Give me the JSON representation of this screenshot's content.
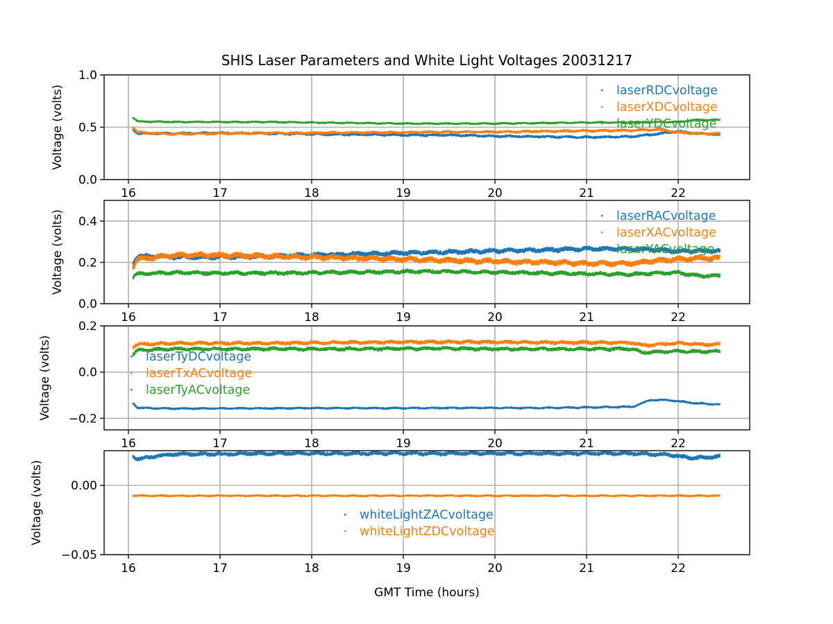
{
  "chart_data": {
    "title": "SHIS Laser Parameters and White Light Voltages 20031217",
    "xlabel": "GMT Time (hours)",
    "xlim": [
      15.735,
      22.78
    ],
    "xticks": [
      16,
      17,
      18,
      19,
      20,
      21,
      22
    ],
    "xtick_labels": [
      "16",
      "17",
      "18",
      "19",
      "20",
      "21",
      "22"
    ],
    "grid": true,
    "colors": {
      "blue": "#1f77b4",
      "orange": "#ff7f0e",
      "green": "#2ca02c"
    },
    "panels": [
      {
        "type": "scatter",
        "ylabel": "Voltage (volts)",
        "ylim": [
          0.0,
          1.0
        ],
        "yticks": [
          0.0,
          0.5,
          1.0
        ],
        "ytick_labels": [
          "0.0",
          "0.5",
          "1.0"
        ],
        "legend": "upper-right",
        "series": [
          {
            "name": "laserRDCvoltage",
            "color": "#1f77b4",
            "spread": 0.012,
            "x": [
              16.05,
              16.1,
              16.5,
              17,
              17.5,
              18,
              18.5,
              19,
              19.5,
              20,
              20.5,
              21,
              21.5,
              21.8,
              22.0,
              22.2,
              22.45
            ],
            "y": [
              0.48,
              0.44,
              0.44,
              0.445,
              0.44,
              0.435,
              0.43,
              0.425,
              0.425,
              0.415,
              0.41,
              0.405,
              0.41,
              0.44,
              0.46,
              0.44,
              0.43
            ]
          },
          {
            "name": "laserXDCvoltage",
            "color": "#ff7f0e",
            "spread": 0.012,
            "x": [
              16.05,
              16.1,
              16.5,
              17,
              17.5,
              18,
              18.5,
              19,
              19.5,
              20,
              20.5,
              21,
              21.5,
              21.8,
              22.0,
              22.2,
              22.45
            ],
            "y": [
              0.5,
              0.45,
              0.435,
              0.44,
              0.445,
              0.445,
              0.45,
              0.45,
              0.455,
              0.455,
              0.46,
              0.465,
              0.47,
              0.48,
              0.45,
              0.44,
              0.44
            ]
          },
          {
            "name": "laserYDCvoltage",
            "color": "#2ca02c",
            "spread": 0.008,
            "x": [
              16.05,
              16.1,
              16.5,
              17,
              17.5,
              18,
              18.5,
              19,
              19.5,
              20,
              20.5,
              21,
              21.5,
              21.8,
              22.0,
              22.2,
              22.45
            ],
            "y": [
              0.59,
              0.555,
              0.55,
              0.55,
              0.55,
              0.545,
              0.54,
              0.535,
              0.535,
              0.535,
              0.54,
              0.545,
              0.545,
              0.55,
              0.55,
              0.57,
              0.57
            ]
          }
        ]
      },
      {
        "type": "scatter",
        "ylabel": "Voltage (volts)",
        "ylim": [
          0.0,
          0.5
        ],
        "yticks": [
          0.0,
          0.2,
          0.4
        ],
        "ytick_labels": [
          "0.0",
          "0.2",
          "0.4"
        ],
        "legend": "upper-right",
        "series": [
          {
            "name": "laserRACvoltage",
            "color": "#1f77b4",
            "spread": 0.012,
            "x": [
              16.05,
              16.1,
              16.5,
              17,
              17.5,
              18,
              18.5,
              19,
              19.5,
              20,
              20.5,
              21,
              21.5,
              21.8,
              22.0,
              22.2,
              22.45
            ],
            "y": [
              0.2,
              0.23,
              0.225,
              0.225,
              0.23,
              0.235,
              0.24,
              0.245,
              0.25,
              0.255,
              0.26,
              0.265,
              0.265,
              0.26,
              0.255,
              0.255,
              0.255
            ]
          },
          {
            "name": "laserXACvoltage",
            "color": "#ff7f0e",
            "spread": 0.014,
            "x": [
              16.05,
              16.1,
              16.5,
              17,
              17.5,
              18,
              18.5,
              19,
              19.5,
              20,
              20.5,
              21,
              21.5,
              21.8,
              22.0,
              22.2,
              22.45
            ],
            "y": [
              0.18,
              0.215,
              0.235,
              0.235,
              0.23,
              0.225,
              0.22,
              0.215,
              0.21,
              0.205,
              0.2,
              0.195,
              0.195,
              0.21,
              0.215,
              0.22,
              0.22
            ]
          },
          {
            "name": "laserYACvoltage",
            "color": "#2ca02c",
            "spread": 0.01,
            "x": [
              16.05,
              16.1,
              16.5,
              17,
              17.5,
              18,
              18.5,
              19,
              19.5,
              20,
              20.5,
              21,
              21.5,
              21.8,
              22.0,
              22.2,
              22.45
            ],
            "y": [
              0.13,
              0.145,
              0.15,
              0.148,
              0.148,
              0.15,
              0.152,
              0.155,
              0.155,
              0.152,
              0.148,
              0.145,
              0.142,
              0.148,
              0.15,
              0.135,
              0.135
            ]
          }
        ]
      },
      {
        "type": "scatter",
        "ylabel": "Voltage (volts)",
        "ylim": [
          -0.25,
          0.2
        ],
        "yticks": [
          -0.2,
          0.0,
          0.2
        ],
        "ytick_labels": [
          "−0.2",
          "0.0",
          "0.2"
        ],
        "legend": "center-left",
        "series": [
          {
            "name": "laserTyDCvoltage",
            "color": "#1f77b4",
            "spread": 0.004,
            "x": [
              16.05,
              16.1,
              16.5,
              17,
              17.5,
              18,
              18.5,
              19,
              19.5,
              20,
              20.5,
              21,
              21.5,
              21.6,
              21.7,
              21.9,
              22.2,
              22.45
            ],
            "y": [
              -0.135,
              -0.155,
              -0.158,
              -0.157,
              -0.157,
              -0.156,
              -0.156,
              -0.156,
              -0.155,
              -0.155,
              -0.155,
              -0.153,
              -0.15,
              -0.135,
              -0.12,
              -0.122,
              -0.135,
              -0.14
            ]
          },
          {
            "name": "laserTxACvoltage",
            "color": "#ff7f0e",
            "spread": 0.008,
            "x": [
              16.05,
              16.1,
              16.5,
              17,
              17.5,
              18,
              18.5,
              19,
              19.5,
              20,
              20.5,
              21,
              21.5,
              21.6,
              21.8,
              22.0,
              22.2,
              22.45
            ],
            "y": [
              0.11,
              0.12,
              0.125,
              0.125,
              0.125,
              0.127,
              0.128,
              0.13,
              0.13,
              0.13,
              0.128,
              0.128,
              0.127,
              0.115,
              0.12,
              0.125,
              0.12,
              0.12
            ]
          },
          {
            "name": "laserTyACvoltage",
            "color": "#2ca02c",
            "spread": 0.008,
            "x": [
              16.05,
              16.1,
              16.5,
              17,
              17.5,
              18,
              18.5,
              19,
              19.5,
              20,
              20.5,
              21,
              21.5,
              21.6,
              21.8,
              22.0,
              22.2,
              22.45
            ],
            "y": [
              0.075,
              0.095,
              0.1,
              0.1,
              0.1,
              0.1,
              0.1,
              0.102,
              0.102,
              0.1,
              0.1,
              0.1,
              0.1,
              0.085,
              0.088,
              0.09,
              0.088,
              0.09
            ]
          }
        ]
      },
      {
        "type": "scatter",
        "ylabel": "Voltage (volts)",
        "xlabel": "GMT Time (hours)",
        "ylim": [
          -0.05,
          0.025
        ],
        "yticks": [
          -0.05,
          0.0
        ],
        "ytick_labels": [
          "−0.05",
          "0.00"
        ],
        "legend": "lower-center",
        "series": [
          {
            "name": "whiteLightZACvoltage",
            "color": "#1f77b4",
            "spread": 0.0015,
            "x": [
              16.05,
              16.1,
              16.3,
              16.5,
              17,
              17.5,
              18,
              18.5,
              19,
              19.5,
              20,
              20.5,
              21,
              21.5,
              21.9,
              22.1,
              22.3,
              22.45
            ],
            "y": [
              0.021,
              0.019,
              0.021,
              0.0225,
              0.0225,
              0.023,
              0.023,
              0.023,
              0.023,
              0.023,
              0.023,
              0.023,
              0.023,
              0.023,
              0.022,
              0.02,
              0.02,
              0.021
            ]
          },
          {
            "name": "whiteLightZDCvoltage",
            "color": "#ff7f0e",
            "spread": 0.0006,
            "x": [
              16.05,
              16.5,
              17,
              17.5,
              18,
              18.5,
              19,
              19.5,
              20,
              20.5,
              21,
              21.5,
              22.0,
              22.45
            ],
            "y": [
              -0.0075,
              -0.0075,
              -0.0075,
              -0.0075,
              -0.0075,
              -0.0075,
              -0.0075,
              -0.0075,
              -0.0075,
              -0.0075,
              -0.0075,
              -0.0075,
              -0.0075,
              -0.0075
            ]
          }
        ]
      }
    ]
  }
}
